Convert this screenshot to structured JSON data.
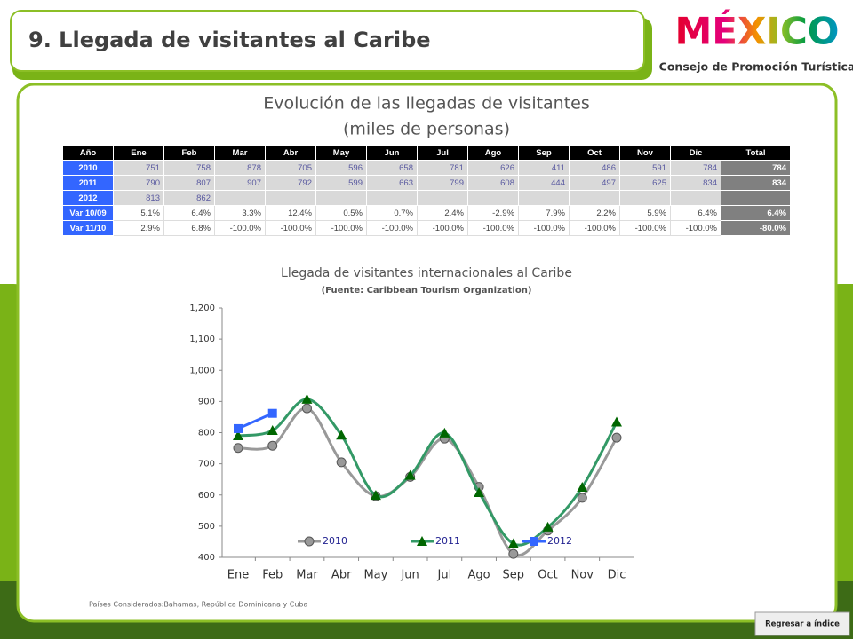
{
  "header": {
    "title": "9. Llegada de visitantes al Caribe"
  },
  "logo": {
    "name": "MÉXICO",
    "subtitle": "Consejo de Promoción Turística"
  },
  "table_title": [
    "Evolución de las llegadas de visitantes",
    "(miles de personas)"
  ],
  "table": {
    "header": [
      "Año",
      "Ene",
      "Feb",
      "Mar",
      "Abr",
      "May",
      "Jun",
      "Jul",
      "Ago",
      "Sep",
      "Oct",
      "Nov",
      "Dic",
      "Total"
    ],
    "rows": [
      [
        "2010",
        "751",
        "758",
        "878",
        "705",
        "596",
        "658",
        "781",
        "626",
        "411",
        "486",
        "591",
        "784",
        "784"
      ],
      [
        "2011",
        "790",
        "807",
        "907",
        "792",
        "599",
        "663",
        "799",
        "608",
        "444",
        "497",
        "625",
        "834",
        "834"
      ],
      [
        "2012",
        "813",
        "862",
        null,
        null,
        null,
        null,
        null,
        null,
        null,
        null,
        null,
        null,
        null
      ],
      [
        "Var 10/09",
        "5.1%",
        "6.4%",
        "3.3%",
        "12.4%",
        "0.5%",
        "0.7%",
        "2.4%",
        "-2.9%",
        "7.9%",
        "2.2%",
        "5.9%",
        "6.4%",
        "6.4%"
      ],
      [
        "Var 11/10",
        "2.9%",
        "6.8%",
        "-100.0%",
        "-100.0%",
        "-100.0%",
        "-100.0%",
        "-100.0%",
        "-100.0%",
        "-100.0%",
        "-100.0%",
        "-100.0%",
        "-100.0%",
        "-80.0%"
      ]
    ]
  },
  "chart_data": {
    "type": "line",
    "title": "Llegada de visitantes internacionales al Caribe",
    "subtitle": "(Fuente: Caribbean Tourism Organization)",
    "categories": [
      "Ene",
      "Feb",
      "Mar",
      "Abr",
      "May",
      "Jun",
      "Jul",
      "Ago",
      "Sep",
      "Oct",
      "Nov",
      "Dic"
    ],
    "series": [
      {
        "name": "2010",
        "color": "#999999",
        "marker": "circle",
        "smooth": true,
        "values": [
          751,
          758,
          878,
          705,
          596,
          658,
          781,
          626,
          411,
          486,
          591,
          784
        ]
      },
      {
        "name": "2011",
        "color": "#339966",
        "marker": "triangle",
        "smooth": true,
        "values": [
          790,
          807,
          907,
          792,
          599,
          663,
          799,
          608,
          444,
          497,
          625,
          834
        ]
      },
      {
        "name": "2012",
        "color": "#3366ff",
        "marker": "square",
        "smooth": false,
        "values": [
          813,
          862,
          null,
          null,
          null,
          null,
          null,
          null,
          null,
          null,
          null,
          null
        ]
      }
    ],
    "ylim": [
      400,
      1200
    ],
    "yticks": [
      400,
      500,
      600,
      700,
      800,
      900,
      {
        "value": 1000,
        "label": "1,000"
      },
      {
        "value": 1100,
        "label": "1,100"
      },
      {
        "value": 1200,
        "label": "1,200"
      }
    ],
    "grid": false,
    "legend": "bottom"
  },
  "footnote": "Países Considerados:Bahamas, República Dominicana y Cuba",
  "button": "Regresar a índice"
}
